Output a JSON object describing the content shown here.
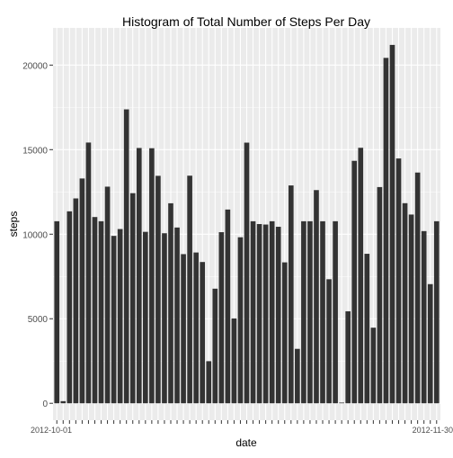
{
  "chart_data": {
    "type": "bar",
    "title": "Histogram of Total Number of Steps Per Day",
    "xlabel": "date",
    "ylabel": "steps",
    "ylim": [
      -1000,
      22200
    ],
    "yticks": [
      0,
      5000,
      10000,
      15000,
      20000
    ],
    "ytick_labels": [
      "0",
      "5000",
      "10000",
      "15000",
      "20000"
    ],
    "x_tick_label_first": "2012-10-01",
    "x_tick_label_last": "2012-11-30",
    "grid": true,
    "legend": "none",
    "categories": [
      "2012-10-01",
      "2012-10-02",
      "2012-10-03",
      "2012-10-04",
      "2012-10-05",
      "2012-10-06",
      "2012-10-07",
      "2012-10-08",
      "2012-10-09",
      "2012-10-10",
      "2012-10-11",
      "2012-10-12",
      "2012-10-13",
      "2012-10-14",
      "2012-10-15",
      "2012-10-16",
      "2012-10-17",
      "2012-10-18",
      "2012-10-19",
      "2012-10-20",
      "2012-10-21",
      "2012-10-22",
      "2012-10-23",
      "2012-10-24",
      "2012-10-25",
      "2012-10-26",
      "2012-10-27",
      "2012-10-28",
      "2012-10-29",
      "2012-10-30",
      "2012-10-31",
      "2012-11-01",
      "2012-11-02",
      "2012-11-03",
      "2012-11-04",
      "2012-11-05",
      "2012-11-06",
      "2012-11-07",
      "2012-11-08",
      "2012-11-09",
      "2012-11-10",
      "2012-11-11",
      "2012-11-12",
      "2012-11-13",
      "2012-11-14",
      "2012-11-15",
      "2012-11-16",
      "2012-11-17",
      "2012-11-18",
      "2012-11-19",
      "2012-11-20",
      "2012-11-21",
      "2012-11-22",
      "2012-11-23",
      "2012-11-24",
      "2012-11-25",
      "2012-11-26",
      "2012-11-27",
      "2012-11-28",
      "2012-11-29",
      "2012-11-30"
    ],
    "values": [
      10766,
      126,
      11352,
      12116,
      13294,
      15420,
      11015,
      10766,
      12811,
      9900,
      10304,
      17382,
      12426,
      15098,
      10139,
      15084,
      13452,
      10056,
      11829,
      10395,
      8821,
      13460,
      8918,
      8355,
      2492,
      6778,
      10119,
      11458,
      5018,
      9819,
      15414,
      10766,
      10600,
      10571,
      10766,
      10439,
      8334,
      12883,
      3219,
      10766,
      10766,
      12608,
      10765,
      7336,
      10766,
      41,
      5441,
      14339,
      15110,
      8841,
      4472,
      12787,
      20427,
      21194,
      14478,
      11834,
      11162,
      13646,
      10183,
      7047,
      10766
    ],
    "colors": {
      "bar": "#333333",
      "panel_background": "#ebebeb",
      "grid": "#ffffff",
      "axis_text": "#4d4d4d",
      "title": "#000000"
    }
  }
}
